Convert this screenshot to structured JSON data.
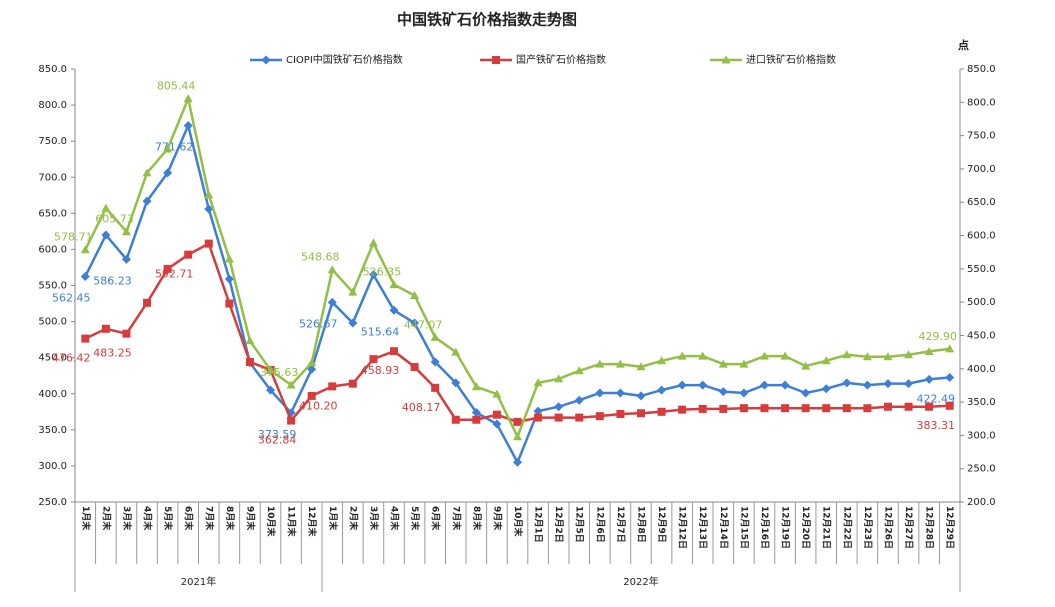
{
  "chart_data": {
    "type": "line",
    "title": "中国铁矿石价格指数走势图",
    "y2_label": "点",
    "categories": [
      "1月末",
      "2月末",
      "3月末",
      "4月末",
      "5月末",
      "6月末",
      "7月末",
      "8月末",
      "9月末",
      "10月末",
      "11月末",
      "12月末",
      "1月末",
      "2月末",
      "3月末",
      "4月末",
      "5月末",
      "6月末",
      "7月末",
      "8月末",
      "9月末",
      "10月末",
      "12月1日",
      "12月2日",
      "12月5日",
      "12月6日",
      "12月7日",
      "12月8日",
      "12月9日",
      "12月12日",
      "12月13日",
      "12月14日",
      "12月15日",
      "12月16日",
      "12月19日",
      "12月20日",
      "12月21日",
      "12月22日",
      "12月23日",
      "12月26日",
      "12月27日",
      "12月28日",
      "12月29日"
    ],
    "groups": [
      {
        "label": "2021年",
        "count": 12
      },
      {
        "label": "2022年",
        "count": 31
      }
    ],
    "series": [
      {
        "name": "CIOPI中国铁矿石价格指数",
        "color": "#3d7fd6",
        "marker": "diamond",
        "values": [
          562.45,
          620,
          586.23,
          667,
          706,
          771.62,
          656,
          559,
          443,
          405,
          373.59,
          434,
          526.67,
          498,
          565,
          515.64,
          498,
          444,
          415,
          374,
          358,
          305,
          376,
          382,
          391,
          401,
          401,
          397,
          405,
          412,
          412,
          403,
          401,
          412,
          412,
          401,
          407,
          415,
          412,
          414,
          414,
          420,
          422.49
        ],
        "value_labels": [
          "562.45",
          null,
          "586.23",
          null,
          null,
          "771.62",
          null,
          null,
          null,
          null,
          "373.59",
          null,
          "526.67",
          null,
          null,
          "515.64",
          null,
          null,
          null,
          null,
          null,
          null,
          null,
          null,
          null,
          null,
          null,
          null,
          null,
          null,
          null,
          null,
          null,
          null,
          null,
          null,
          null,
          null,
          null,
          null,
          null,
          null,
          "422.49"
        ]
      },
      {
        "name": "国产铁矿石价格指数",
        "color": "#d63c3c",
        "marker": "square",
        "values": [
          476.42,
          490,
          483.25,
          526,
          573,
          592.71,
          608,
          525,
          444,
          433,
          362.84,
          397,
          410.2,
          414,
          448,
          458.93,
          437,
          408.17,
          364,
          364,
          371,
          361,
          367,
          367,
          367,
          369,
          372,
          373,
          375,
          378,
          379,
          379,
          380,
          380,
          380,
          380,
          380,
          380,
          380,
          382,
          382,
          382,
          383.31
        ],
        "value_labels": [
          "476.42",
          null,
          "483.25",
          null,
          null,
          "592.71",
          null,
          null,
          null,
          null,
          "362.84",
          null,
          "410.20",
          null,
          null,
          "458.93",
          null,
          "408.17",
          null,
          null,
          null,
          null,
          null,
          null,
          null,
          null,
          null,
          null,
          null,
          null,
          null,
          null,
          null,
          null,
          null,
          null,
          null,
          null,
          null,
          null,
          null,
          null,
          "383.31"
        ]
      },
      {
        "name": "进口铁矿石价格指数",
        "color": "#92bf45",
        "marker": "triangle",
        "axis": "y2",
        "values": [
          578.71,
          641,
          605.73,
          694,
          730,
          805.44,
          661,
          565,
          442,
          398,
          375.63,
          409,
          548.68,
          515,
          589,
          526.35,
          510,
          447.07,
          425,
          373,
          362,
          298,
          379,
          385,
          397,
          407,
          407,
          403,
          412,
          419,
          419,
          407,
          407,
          419,
          419,
          404,
          412,
          421,
          418,
          418,
          421,
          426,
          429.9
        ],
        "value_labels": [
          "578.71",
          null,
          "605.73",
          null,
          null,
          "805.44",
          null,
          null,
          null,
          null,
          "375.63",
          null,
          "548.68",
          null,
          null,
          "526.35",
          null,
          "447.07",
          null,
          null,
          null,
          null,
          null,
          null,
          null,
          null,
          null,
          null,
          null,
          null,
          null,
          null,
          null,
          null,
          null,
          null,
          null,
          null,
          null,
          null,
          null,
          null,
          "429.90"
        ]
      }
    ],
    "ylim": [
      250,
      850
    ],
    "yticks": [
      {
        "value": 250,
        "label": "250.0"
      },
      {
        "value": 300,
        "label": "300.0"
      },
      {
        "value": 350,
        "label": "350.0"
      },
      {
        "value": 400,
        "label": "400.0"
      },
      {
        "value": 450,
        "label": "450.0"
      },
      {
        "value": 500,
        "label": "500.0"
      },
      {
        "value": 550,
        "label": "550.0"
      },
      {
        "value": 600,
        "label": "600.0"
      },
      {
        "value": 650,
        "label": "650.0"
      },
      {
        "value": 700,
        "label": "700.0"
      },
      {
        "value": 750,
        "label": "750.0"
      },
      {
        "value": 800,
        "label": "800.0"
      },
      {
        "value": 850,
        "label": "850.0"
      }
    ],
    "y2lim": [
      200,
      850
    ],
    "y2ticks": [
      {
        "value": 200,
        "label": "200.0"
      },
      {
        "value": 250,
        "label": "250.0"
      },
      {
        "value": 300,
        "label": "300.0"
      },
      {
        "value": 350,
        "label": "350.0"
      },
      {
        "value": 400,
        "label": "400.0"
      },
      {
        "value": 450,
        "label": "450.0"
      },
      {
        "value": 500,
        "label": "500.0"
      },
      {
        "value": 550,
        "label": "550.0"
      },
      {
        "value": 600,
        "label": "600.0"
      },
      {
        "value": 650,
        "label": "650.0"
      },
      {
        "value": 700,
        "label": "700.0"
      },
      {
        "value": 750,
        "label": "750.0"
      },
      {
        "value": 800,
        "label": "800.0"
      },
      {
        "value": 850,
        "label": "850.0"
      }
    ],
    "legend": "top"
  }
}
